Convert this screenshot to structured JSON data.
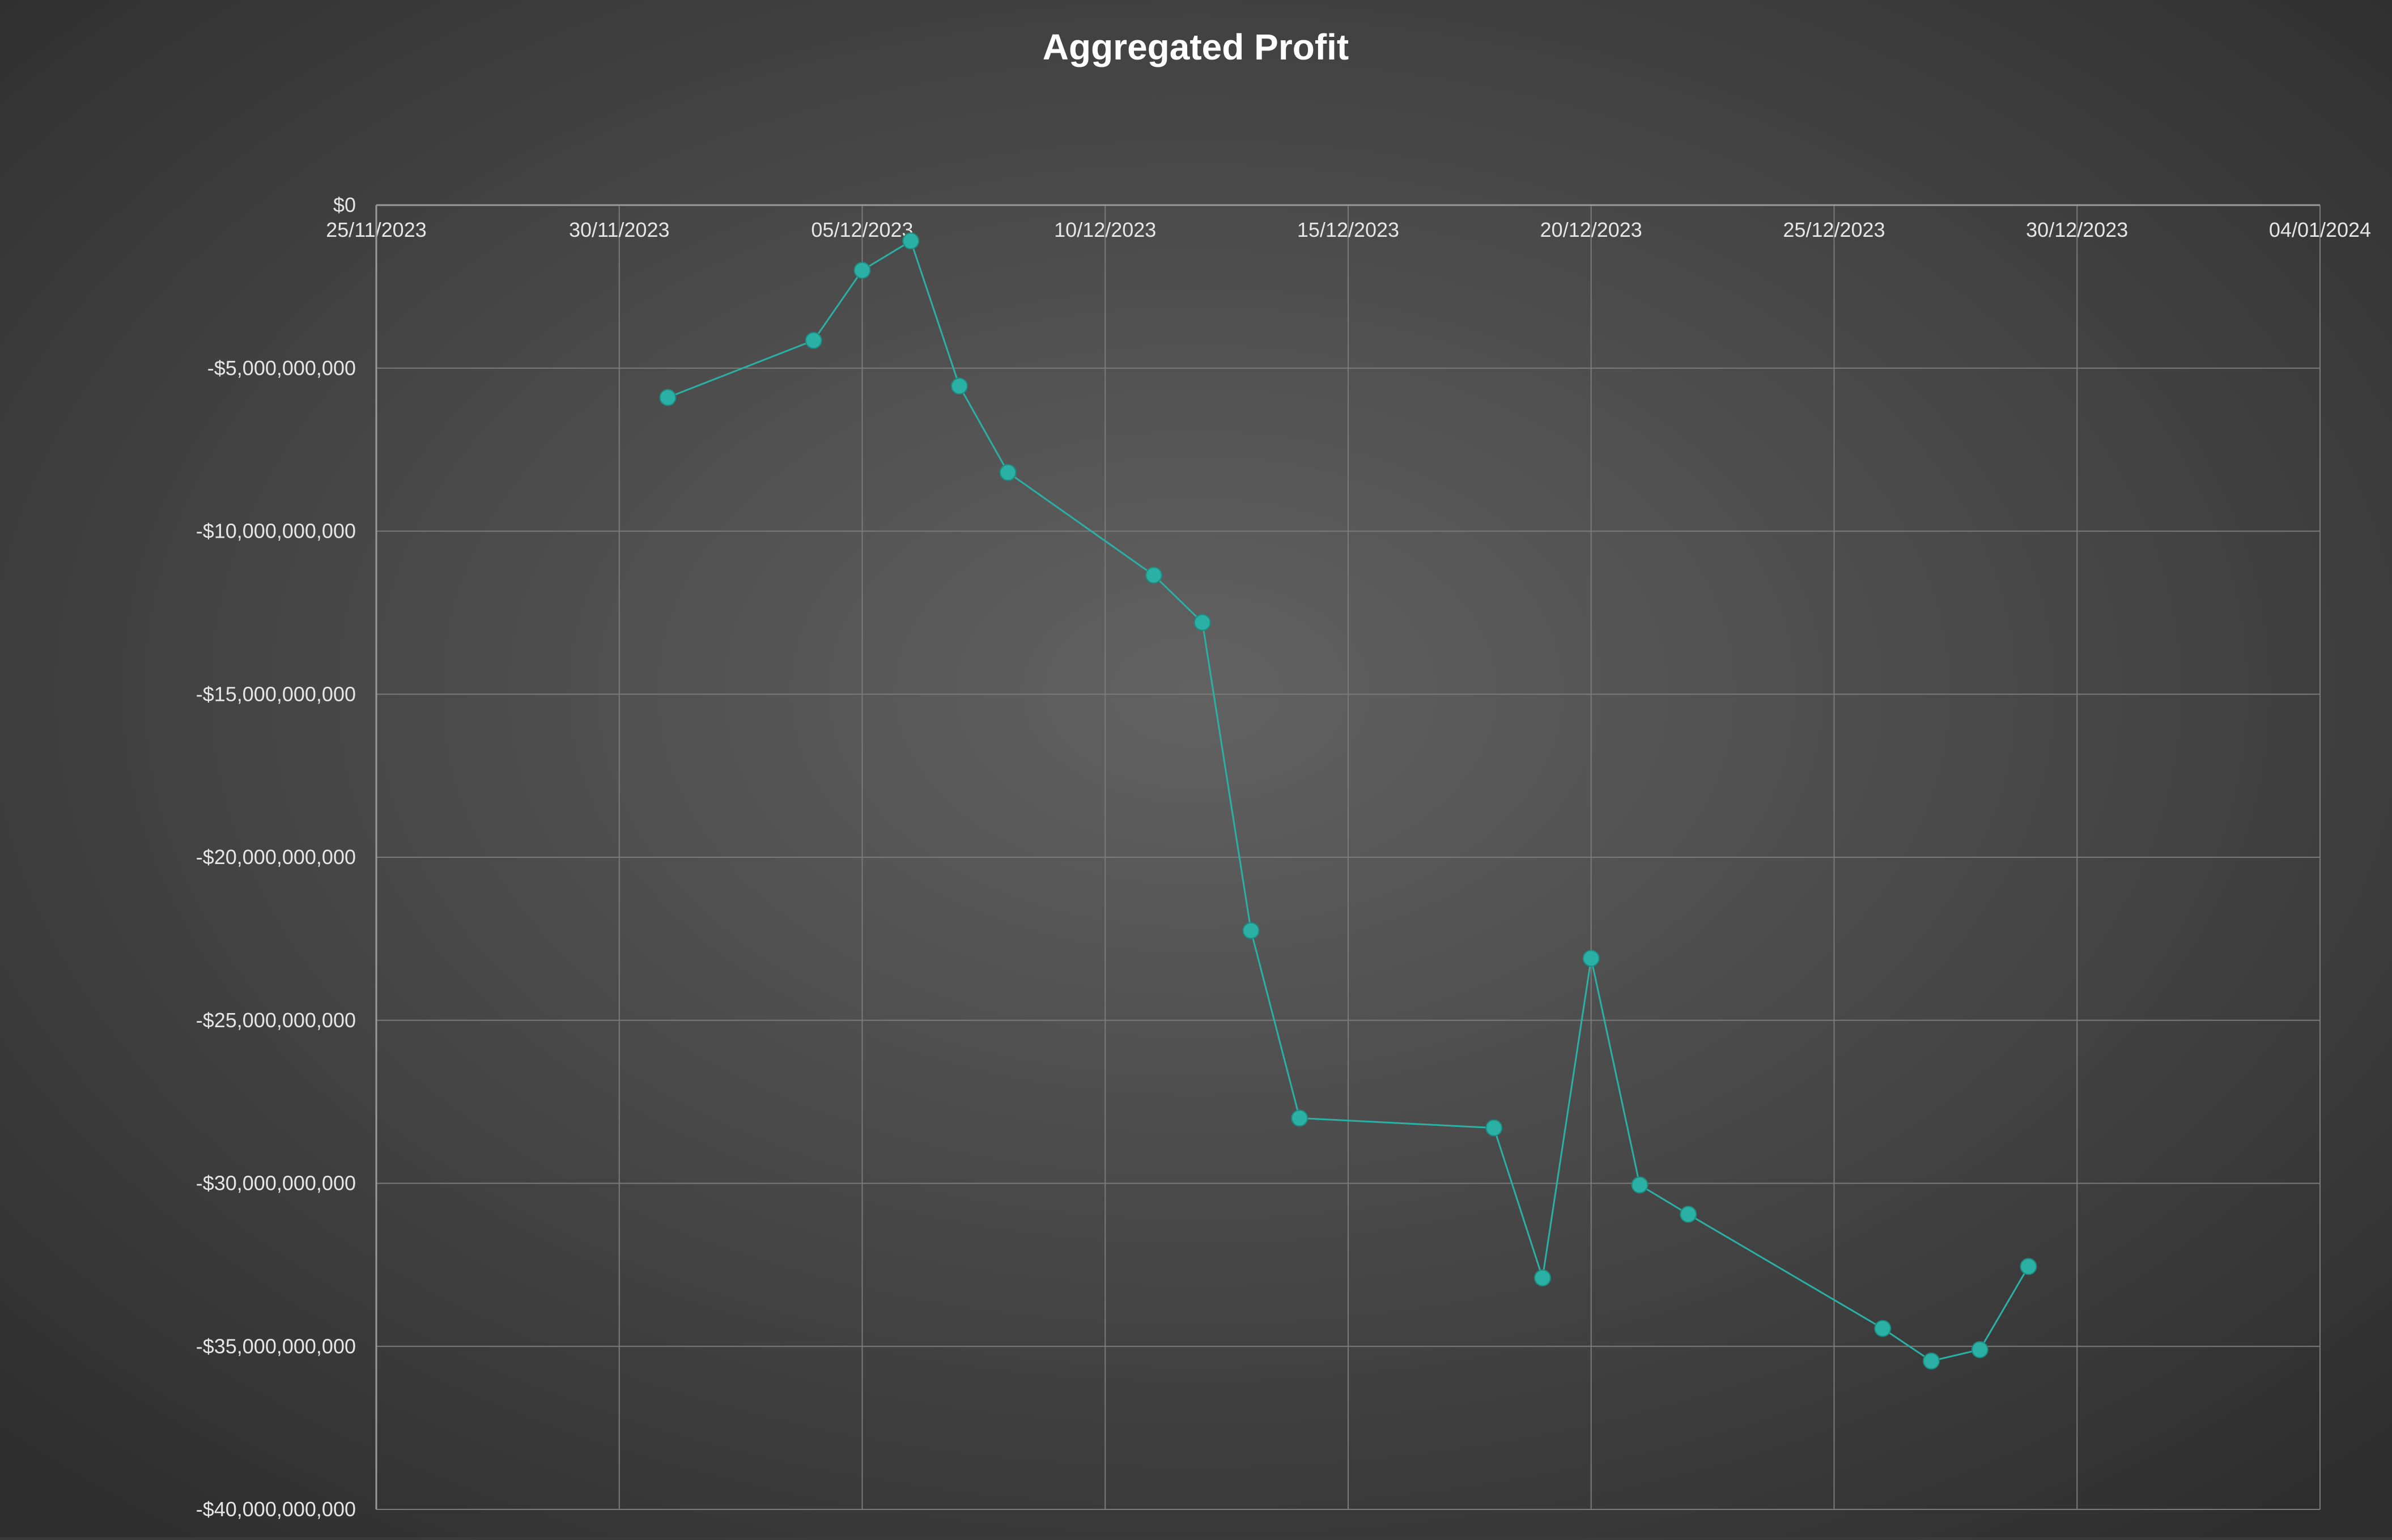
{
  "chart_data": {
    "type": "scatter",
    "title": "Aggregated Profit",
    "xlabel": "",
    "ylabel": "",
    "x_axis": {
      "kind": "date",
      "min": "2023-11-25",
      "max": "2024-01-04",
      "tick_labels": [
        "25/11/2023",
        "30/11/2023",
        "05/12/2023",
        "10/12/2023",
        "15/12/2023",
        "20/12/2023",
        "25/12/2023",
        "30/12/2023",
        "04/01/2024"
      ],
      "tick_values": [
        "2023-11-25",
        "2023-11-30",
        "2023-12-05",
        "2023-12-10",
        "2023-12-15",
        "2023-12-20",
        "2023-12-25",
        "2023-12-30",
        "2024-01-04"
      ],
      "position": "top"
    },
    "y_axis": {
      "min": -40000000000,
      "max": 0,
      "tick_values": [
        0,
        -5000000000,
        -10000000000,
        -15000000000,
        -20000000000,
        -25000000000,
        -30000000000,
        -35000000000,
        -40000000000
      ],
      "tick_labels": [
        "$0",
        "-$5,000,000,000",
        "-$10,000,000,000",
        "-$15,000,000,000",
        "-$20,000,000,000",
        "-$25,000,000,000",
        "-$30,000,000,000",
        "-$35,000,000,000",
        "-$40,000,000,000"
      ]
    },
    "grid": true,
    "legend": "none",
    "series": [
      {
        "color": "#2ab0a4",
        "points": [
          {
            "x": "2023-12-01",
            "y": -5900000000
          },
          {
            "x": "2023-12-04",
            "y": -4150000000
          },
          {
            "x": "2023-12-05",
            "y": -2000000000
          },
          {
            "x": "2023-12-06",
            "y": -1100000000
          },
          {
            "x": "2023-12-07",
            "y": -5550000000
          },
          {
            "x": "2023-12-08",
            "y": -8200000000
          },
          {
            "x": "2023-12-11",
            "y": -11350000000
          },
          {
            "x": "2023-12-12",
            "y": -12800000000
          },
          {
            "x": "2023-12-13",
            "y": -22250000000
          },
          {
            "x": "2023-12-14",
            "y": -28000000000
          },
          {
            "x": "2023-12-18",
            "y": -28300000000
          },
          {
            "x": "2023-12-19",
            "y": -32900000000
          },
          {
            "x": "2023-12-20",
            "y": -23100000000
          },
          {
            "x": "2023-12-21",
            "y": -30050000000
          },
          {
            "x": "2023-12-22",
            "y": -30950000000
          },
          {
            "x": "2023-12-26",
            "y": -34450000000
          },
          {
            "x": "2023-12-27",
            "y": -35450000000
          },
          {
            "x": "2023-12-28",
            "y": -35100000000
          },
          {
            "x": "2023-12-29",
            "y": -32550000000
          }
        ]
      }
    ]
  },
  "colors": {
    "background_center": "#626262",
    "background_edge": "#2e2e2e",
    "grid": "#7a7a7a",
    "axis": "#9a9a9a",
    "text": "#e6e6e6",
    "title": "#ffffff",
    "series": "#2ab0a4"
  }
}
